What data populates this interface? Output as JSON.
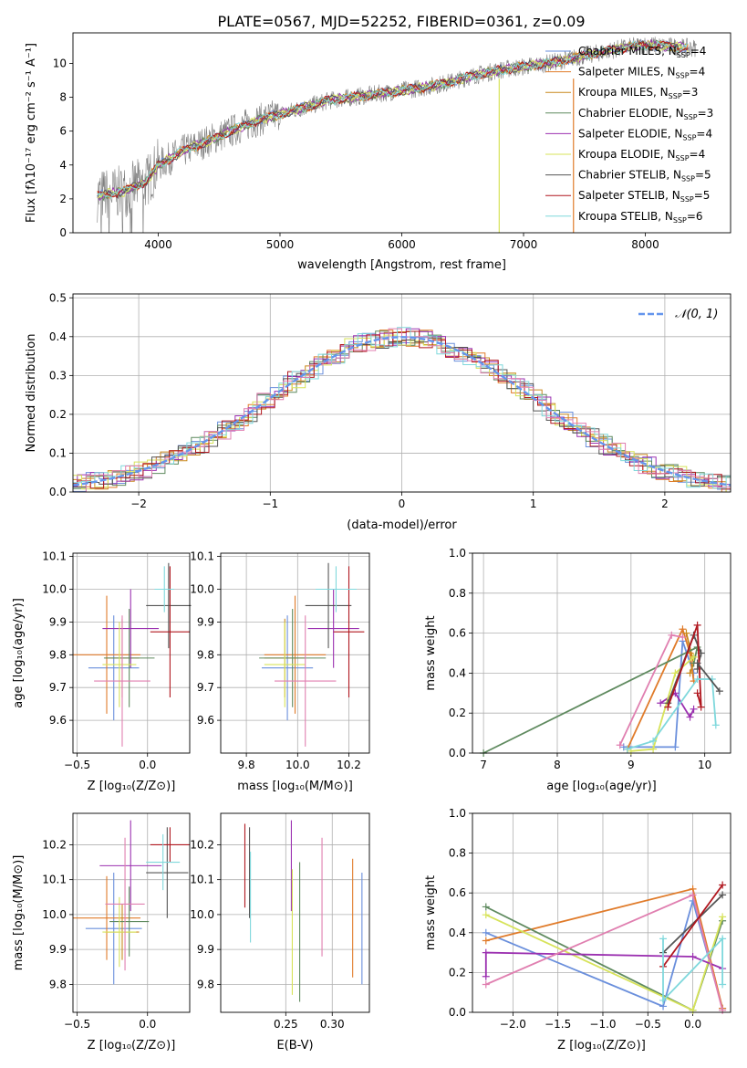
{
  "title": "PLATE=0567, MJD=52252, FIBERID=0361, z=0.09",
  "colors": {
    "Chabrier MILES": "#6a8fdc",
    "Salpeter MILES": "#e07b2a",
    "Kroupa MILES": "#c9891e",
    "Chabrier ELODIE": "#5f8a5f",
    "Salpeter ELODIE": "#9b30b0",
    "Kroupa ELODIE": "#d7e35a",
    "Chabrier STELIB": "#555555",
    "Salpeter STELIB": "#b0171f",
    "Kroupa STELIB": "#7fd8dc",
    "extra_pink": "#e07fb0",
    "data_gray": "#808080",
    "normal_dashed": "#6495ed"
  },
  "chart_data": [
    {
      "type": "line",
      "id": "spectrum",
      "title": "PLATE=0567, MJD=52252, FIBERID=0361, z=0.09",
      "xlabel": "wavelength [Angstrom, rest frame]",
      "ylabel": "Flux [fλ10⁻¹⁷ erg cm⁻² s⁻¹ A⁻¹]",
      "xlim": [
        3300,
        8700
      ],
      "ylim": [
        0,
        11.8
      ],
      "xticks": [
        4000,
        5000,
        6000,
        7000,
        8000
      ],
      "yticks": [
        0,
        2,
        4,
        6,
        8,
        10
      ],
      "legend_position": "right",
      "legend": [
        {
          "label": "Chabrier MILES, N",
          "sub": "SSP",
          "tail": "=4",
          "color": "#6a8fdc"
        },
        {
          "label": "Salpeter MILES, N",
          "sub": "SSP",
          "tail": "=4",
          "color": "#e07b2a"
        },
        {
          "label": "Kroupa MILES, N",
          "sub": "SSP",
          "tail": "=3",
          "color": "#c9891e"
        },
        {
          "label": "Chabrier ELODIE, N",
          "sub": "SSP",
          "tail": "=3",
          "color": "#5f8a5f"
        },
        {
          "label": "Salpeter ELODIE, N",
          "sub": "SSP",
          "tail": "=4",
          "color": "#9b30b0"
        },
        {
          "label": "Kroupa ELODIE, N",
          "sub": "SSP",
          "tail": "=4",
          "color": "#d7e35a"
        },
        {
          "label": "Chabrier STELIB, N",
          "sub": "SSP",
          "tail": "=5",
          "color": "#555555"
        },
        {
          "label": "Salpeter STELIB, N",
          "sub": "SSP",
          "tail": "=5",
          "color": "#b0171f"
        },
        {
          "label": "Kroupa STELIB, N",
          "sub": "SSP",
          "tail": "=6",
          "color": "#7fd8dc"
        }
      ],
      "data_envelope": {
        "x": [
          3500,
          3700,
          3900,
          4000,
          4200,
          4400,
          4600,
          4800,
          5000,
          5200,
          5400,
          5600,
          5800,
          6000,
          6200,
          6400,
          6600,
          6800,
          7000,
          7200,
          7400,
          7600,
          7800,
          8000,
          8200,
          8400
        ],
        "y": [
          2.2,
          2.4,
          3.0,
          4.0,
          4.8,
          5.4,
          6.0,
          6.6,
          7.0,
          7.4,
          7.8,
          8.0,
          8.2,
          8.4,
          8.6,
          8.9,
          9.3,
          9.6,
          9.8,
          10.0,
          10.3,
          10.6,
          10.9,
          11.1,
          11.0,
          10.9
        ]
      },
      "vertical_spikes": [
        {
          "x": 6800,
          "color": "#d7e35a"
        },
        {
          "x": 7410,
          "color": "#e07b2a"
        }
      ]
    },
    {
      "type": "bar",
      "id": "residual-histogram",
      "xlabel": "(data-model)/error",
      "ylabel": "Normed distribution",
      "xlim": [
        -2.5,
        2.5
      ],
      "ylim": [
        0,
        0.51
      ],
      "xticks": [
        -2,
        -1,
        0,
        1,
        2
      ],
      "yticks": [
        0.0,
        0.1,
        0.2,
        0.3,
        0.4,
        0.5
      ],
      "legend_position": "top-right",
      "normal_label": "𝒩(0, 1)"
    },
    {
      "type": "scatter",
      "id": "age-vs-Z",
      "xlabel": "Z [log₁₀(Z/Z⊙)]",
      "ylabel": "age  [log₁₀(age/yr)]",
      "xlim": [
        -0.53,
        0.3
      ],
      "ylim": [
        9.5,
        10.11
      ],
      "xticks": [
        -0.5,
        0.0
      ],
      "yticks": [
        9.6,
        9.7,
        9.8,
        9.9,
        10.0,
        10.1
      ],
      "points": [
        {
          "x": -0.24,
          "y": 9.76,
          "xerr": 0.18,
          "yerr": 0.16,
          "color": "#6a8fdc"
        },
        {
          "x": -0.29,
          "y": 9.8,
          "xerr": 0.24,
          "yerr": 0.18,
          "color": "#e07b2a"
        },
        {
          "x": -0.18,
          "y": 9.79,
          "xerr": 0.12,
          "yerr": 0.12,
          "color": "#c9891e"
        },
        {
          "x": -0.13,
          "y": 9.79,
          "xerr": 0.18,
          "yerr": 0.15,
          "color": "#5f8a5f"
        },
        {
          "x": -0.12,
          "y": 9.88,
          "xerr": 0.2,
          "yerr": 0.12,
          "color": "#9b30b0"
        },
        {
          "x": -0.2,
          "y": 9.77,
          "xerr": 0.12,
          "yerr": 0.13,
          "color": "#d7e35a"
        },
        {
          "x": 0.15,
          "y": 9.95,
          "xerr": 0.16,
          "yerr": 0.13,
          "color": "#555555"
        },
        {
          "x": 0.16,
          "y": 9.87,
          "xerr": 0.14,
          "yerr": 0.2,
          "color": "#b0171f"
        },
        {
          "x": 0.12,
          "y": 10.0,
          "xerr": 0.07,
          "yerr": 0.07,
          "color": "#7fd8dc"
        },
        {
          "x": -0.18,
          "y": 9.72,
          "xerr": 0.2,
          "yerr": 0.2,
          "color": "#e07fb0"
        }
      ]
    },
    {
      "type": "scatter",
      "id": "age-vs-mass",
      "xlabel": "mass [log₁₀(M/M⊙)]",
      "xlim": [
        9.7,
        10.28
      ],
      "ylim": [
        9.5,
        10.11
      ],
      "xticks": [
        9.8,
        10.0,
        10.2
      ],
      "yticks": [
        9.6,
        9.7,
        9.8,
        9.9,
        10.0,
        10.1
      ],
      "points": [
        {
          "x": 9.96,
          "y": 9.76,
          "xerr": 0.1,
          "yerr": 0.16,
          "color": "#6a8fdc"
        },
        {
          "x": 9.99,
          "y": 9.8,
          "xerr": 0.12,
          "yerr": 0.18,
          "color": "#e07b2a"
        },
        {
          "x": 9.95,
          "y": 9.79,
          "xerr": 0.08,
          "yerr": 0.12,
          "color": "#c9891e"
        },
        {
          "x": 9.98,
          "y": 9.79,
          "xerr": 0.13,
          "yerr": 0.15,
          "color": "#5f8a5f"
        },
        {
          "x": 10.14,
          "y": 9.88,
          "xerr": 0.1,
          "yerr": 0.12,
          "color": "#9b30b0"
        },
        {
          "x": 9.95,
          "y": 9.77,
          "xerr": 0.08,
          "yerr": 0.13,
          "color": "#d7e35a"
        },
        {
          "x": 10.12,
          "y": 9.95,
          "xerr": 0.09,
          "yerr": 0.13,
          "color": "#555555"
        },
        {
          "x": 10.2,
          "y": 9.87,
          "xerr": 0.06,
          "yerr": 0.2,
          "color": "#b0171f"
        },
        {
          "x": 10.15,
          "y": 10.0,
          "xerr": 0.08,
          "yerr": 0.07,
          "color": "#7fd8dc"
        },
        {
          "x": 10.03,
          "y": 9.72,
          "xerr": 0.12,
          "yerr": 0.2,
          "color": "#e07fb0"
        }
      ]
    },
    {
      "type": "line",
      "id": "mass-weight-vs-age",
      "xlabel": "age  [log₁₀(age/yr)]",
      "ylabel": "mass weight",
      "xlim": [
        6.85,
        10.35
      ],
      "ylim": [
        0,
        1.0
      ],
      "xticks": [
        7,
        8,
        9,
        10
      ],
      "yticks": [
        0.0,
        0.2,
        0.4,
        0.6,
        0.8,
        1.0
      ],
      "series": [
        {
          "color": "#6a8fdc",
          "x": [
            8.9,
            9.6,
            9.7,
            9.85
          ],
          "y": [
            0.03,
            0.03,
            0.56,
            0.4
          ]
        },
        {
          "color": "#e07b2a",
          "x": [
            8.95,
            9.7,
            9.8,
            9.85
          ],
          "y": [
            0.02,
            0.62,
            0.5,
            0.36
          ]
        },
        {
          "color": "#c9891e",
          "x": [
            9.75,
            9.85,
            9.8
          ],
          "y": [
            0.6,
            0.45,
            0.4
          ]
        },
        {
          "color": "#5f8a5f",
          "x": [
            7.0,
            9.9,
            9.85
          ],
          "y": [
            0.0,
            0.53,
            0.45
          ]
        },
        {
          "color": "#9b30b0",
          "x": [
            9.4,
            9.6,
            9.8,
            9.85
          ],
          "y": [
            0.25,
            0.3,
            0.18,
            0.22
          ]
        },
        {
          "color": "#d7e35a",
          "x": [
            9.0,
            9.3,
            9.6,
            9.85
          ],
          "y": [
            0.01,
            0.02,
            0.4,
            0.48
          ]
        },
        {
          "color": "#555555",
          "x": [
            9.5,
            9.85,
            9.95,
            9.9
          ],
          "y": [
            0.25,
            0.59,
            0.5,
            0.42
          ]
        },
        {
          "color": "#b0171f",
          "x": [
            9.5,
            9.9,
            9.95,
            9.9
          ],
          "y": [
            0.23,
            0.64,
            0.23,
            0.3
          ]
        },
        {
          "color": "#7fd8dc",
          "x": [
            8.95,
            9.3,
            9.9,
            10.1,
            10.15
          ],
          "y": [
            0.02,
            0.06,
            0.37,
            0.37,
            0.14
          ]
        },
        {
          "color": "#e07fb0",
          "x": [
            8.85,
            9.55,
            9.7
          ],
          "y": [
            0.04,
            0.59,
            0.58
          ]
        },
        {
          "color": "#555555",
          "x": [
            9.9,
            10.2
          ],
          "y": [
            0.45,
            0.31
          ]
        }
      ]
    },
    {
      "type": "scatter",
      "id": "mass-vs-Z",
      "xlabel": "Z [log₁₀(Z/Z⊙)]",
      "ylabel": "mass [log₁₀(M/M⊙)]",
      "xlim": [
        -0.53,
        0.3
      ],
      "ylim": [
        9.72,
        10.29
      ],
      "xticks": [
        -0.5,
        0.0
      ],
      "yticks": [
        9.8,
        9.9,
        10.0,
        10.1,
        10.2
      ],
      "points": [
        {
          "x": -0.24,
          "y": 9.96,
          "xerr": 0.2,
          "yerr": 0.16,
          "color": "#6a8fdc"
        },
        {
          "x": -0.29,
          "y": 9.99,
          "xerr": 0.24,
          "yerr": 0.12,
          "color": "#e07b2a"
        },
        {
          "x": -0.18,
          "y": 9.95,
          "xerr": 0.12,
          "yerr": 0.08,
          "color": "#c9891e"
        },
        {
          "x": -0.13,
          "y": 9.98,
          "xerr": 0.14,
          "yerr": 0.1,
          "color": "#5f8a5f"
        },
        {
          "x": -0.12,
          "y": 10.14,
          "xerr": 0.22,
          "yerr": 0.13,
          "color": "#9b30b0"
        },
        {
          "x": -0.2,
          "y": 9.95,
          "xerr": 0.12,
          "yerr": 0.1,
          "color": "#d7e35a"
        },
        {
          "x": 0.14,
          "y": 10.12,
          "xerr": 0.15,
          "yerr": 0.13,
          "color": "#555555"
        },
        {
          "x": 0.16,
          "y": 10.2,
          "xerr": 0.14,
          "yerr": 0.05,
          "color": "#b0171f"
        },
        {
          "x": 0.11,
          "y": 10.15,
          "xerr": 0.12,
          "yerr": 0.08,
          "color": "#7fd8dc"
        },
        {
          "x": -0.16,
          "y": 10.03,
          "xerr": 0.14,
          "yerr": 0.19,
          "color": "#e07fb0"
        }
      ]
    },
    {
      "type": "scatter",
      "id": "mass-vs-EBV",
      "xlabel": "E(B-V)",
      "xlim": [
        0.18,
        0.34
      ],
      "ylim": [
        9.72,
        10.29
      ],
      "xticks": [
        0.25,
        0.3
      ],
      "xtick_labels": [
        "0.25",
        "0.30"
      ],
      "yticks": [
        9.8,
        9.9,
        10.0,
        10.1,
        10.2
      ],
      "points": [
        {
          "x": 0.332,
          "y": 9.96,
          "yerr": 0.16,
          "color": "#6a8fdc"
        },
        {
          "x": 0.322,
          "y": 9.99,
          "yerr": 0.17,
          "color": "#e07b2a"
        },
        {
          "x": 0.265,
          "y": 9.95,
          "yerr": 0.2,
          "color": "#5f8a5f"
        },
        {
          "x": 0.256,
          "y": 10.14,
          "yerr": 0.13,
          "color": "#9b30b0"
        },
        {
          "x": 0.257,
          "y": 9.95,
          "yerr": 0.18,
          "color": "#d7e35a"
        },
        {
          "x": 0.211,
          "y": 10.12,
          "yerr": 0.13,
          "color": "#555555"
        },
        {
          "x": 0.206,
          "y": 10.14,
          "yerr": 0.12,
          "color": "#b0171f"
        },
        {
          "x": 0.212,
          "y": 10.05,
          "yerr": 0.13,
          "color": "#7fd8dc"
        },
        {
          "x": 0.289,
          "y": 10.05,
          "yerr": 0.17,
          "color": "#e07fb0"
        }
      ]
    },
    {
      "type": "line",
      "id": "mass-weight-vs-Z",
      "xlabel": "Z [log₁₀(Z/Z⊙)]",
      "ylabel": "mass weight",
      "xlim": [
        -2.45,
        0.42
      ],
      "ylim": [
        0,
        1.0
      ],
      "xticks": [
        -2.0,
        -1.5,
        -1.0,
        -0.5,
        0.0
      ],
      "xtick_labels": [
        "−2.0",
        "−1.5",
        "−1.0",
        "−0.5",
        "0.0"
      ],
      "yticks": [
        0.0,
        0.2,
        0.4,
        0.6,
        0.8,
        1.0
      ],
      "series": [
        {
          "color": "#6a8fdc",
          "x": [
            -2.3,
            -0.33,
            0.0,
            0.33
          ],
          "y": [
            0.4,
            0.03,
            0.56,
            0.02
          ]
        },
        {
          "color": "#e07b2a",
          "x": [
            -2.3,
            0.0,
            0.33
          ],
          "y": [
            0.36,
            0.62,
            0.02
          ]
        },
        {
          "color": "#5f8a5f",
          "x": [
            -2.3,
            0.0,
            0.33
          ],
          "y": [
            0.53,
            0.01,
            0.46
          ]
        },
        {
          "color": "#d7e35a",
          "x": [
            -2.3,
            0.0,
            0.33
          ],
          "y": [
            0.49,
            0.01,
            0.48
          ]
        },
        {
          "color": "#9b30b0",
          "x": [
            -2.3,
            -2.3,
            0.0,
            0.33
          ],
          "y": [
            0.18,
            0.3,
            0.28,
            0.22
          ]
        },
        {
          "color": "#e07fb0",
          "x": [
            -2.3,
            0.0,
            0.33
          ],
          "y": [
            0.14,
            0.59,
            0.01
          ]
        },
        {
          "color": "#555555",
          "x": [
            -0.33,
            0.33
          ],
          "y": [
            0.3,
            0.59
          ]
        },
        {
          "color": "#b0171f",
          "x": [
            -0.33,
            0.33
          ],
          "y": [
            0.23,
            0.64
          ]
        },
        {
          "color": "#7fd8dc",
          "x": [
            -0.33,
            -0.33,
            0.33,
            0.33
          ],
          "y": [
            0.37,
            0.06,
            0.37,
            0.14
          ]
        }
      ]
    }
  ]
}
